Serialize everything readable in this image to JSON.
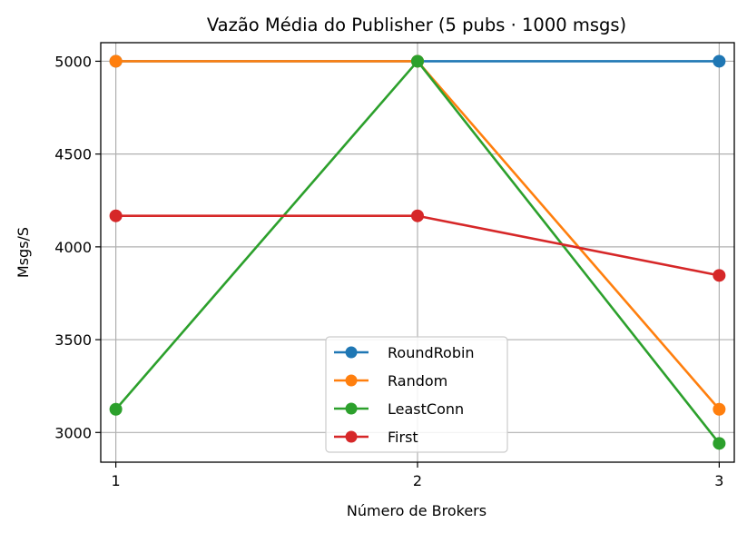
{
  "chart_data": {
    "type": "line",
    "title": "Vazão Média do Publisher (5 pubs · 1000 msgs)",
    "xlabel": "Número de Brokers",
    "ylabel": "Msgs/S",
    "x": [
      1,
      2,
      3
    ],
    "xlim": [
      0.95,
      3.05
    ],
    "ylim": [
      2840,
      5100
    ],
    "xticks": [
      "1",
      "2",
      "3"
    ],
    "yticks": [
      "3000",
      "3500",
      "4000",
      "4500",
      "5000"
    ],
    "grid": true,
    "legend_position": "lower-center",
    "series": [
      {
        "name": "RoundRobin",
        "color": "#1f77b4",
        "values": [
          5000,
          5000,
          5000
        ]
      },
      {
        "name": "Random",
        "color": "#ff7f0e",
        "values": [
          5000,
          5000,
          3125
        ]
      },
      {
        "name": "LeastConn",
        "color": "#2ca02c",
        "values": [
          3125,
          5000,
          2941
        ]
      },
      {
        "name": "First",
        "color": "#d62728",
        "values": [
          4167,
          4167,
          3846
        ]
      }
    ]
  }
}
